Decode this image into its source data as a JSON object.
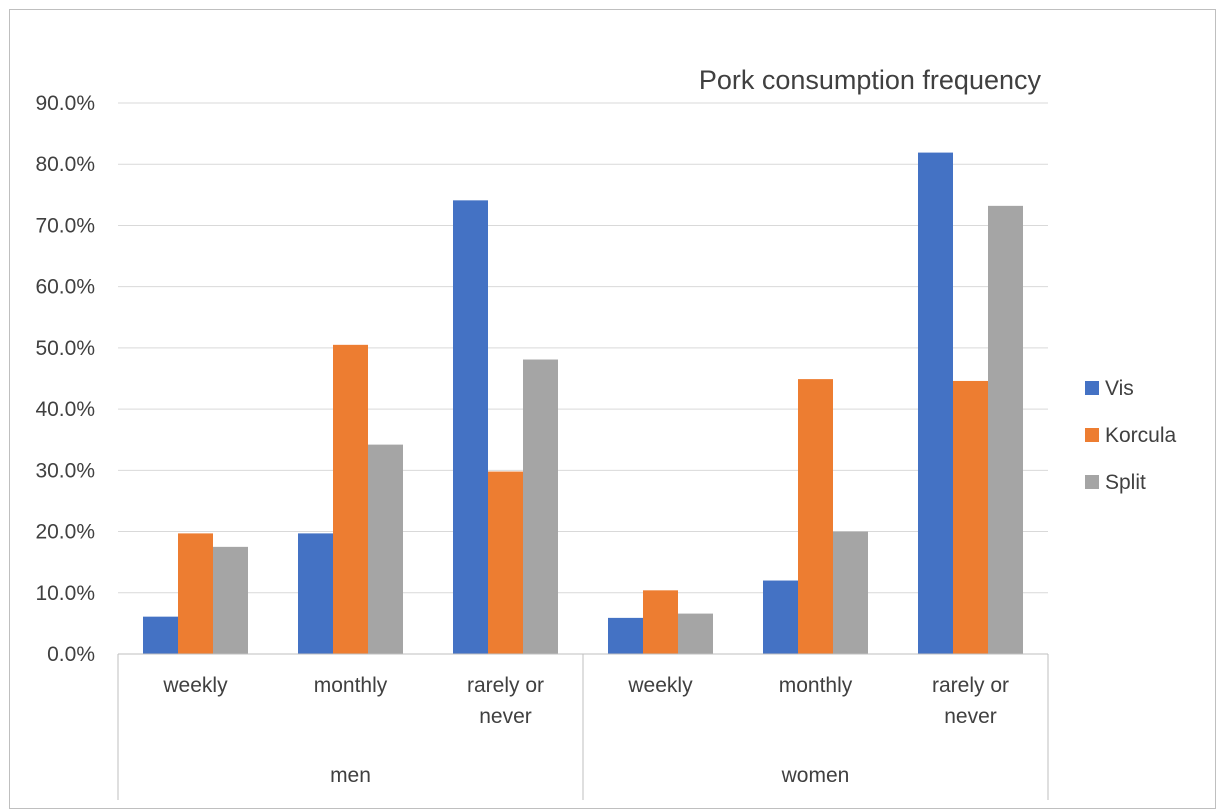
{
  "chart_data": {
    "type": "bar",
    "title": "Pork consumption frequency",
    "groups": [
      {
        "name": "men",
        "categories": [
          "weekly",
          "monthly",
          "rarely or never"
        ]
      },
      {
        "name": "women",
        "categories": [
          "weekly",
          "monthly",
          "rarely or never"
        ]
      }
    ],
    "series": [
      {
        "name": "Vis",
        "color": "#4472c4",
        "values": [
          6.1,
          19.7,
          74.1,
          5.9,
          12.0,
          81.9
        ]
      },
      {
        "name": "Korcula",
        "color": "#ed7d31",
        "values": [
          19.7,
          50.5,
          29.8,
          10.4,
          44.9,
          44.6
        ]
      },
      {
        "name": "Split",
        "color": "#a5a5a5",
        "values": [
          17.5,
          34.2,
          48.1,
          6.6,
          20.0,
          73.2
        ]
      }
    ],
    "y_ticks": [
      "0.0%",
      "10.0%",
      "20.0%",
      "30.0%",
      "40.0%",
      "50.0%",
      "60.0%",
      "70.0%",
      "80.0%",
      "90.0%"
    ],
    "ylim": [
      0,
      90
    ],
    "grid": true,
    "legend_position": "right"
  }
}
